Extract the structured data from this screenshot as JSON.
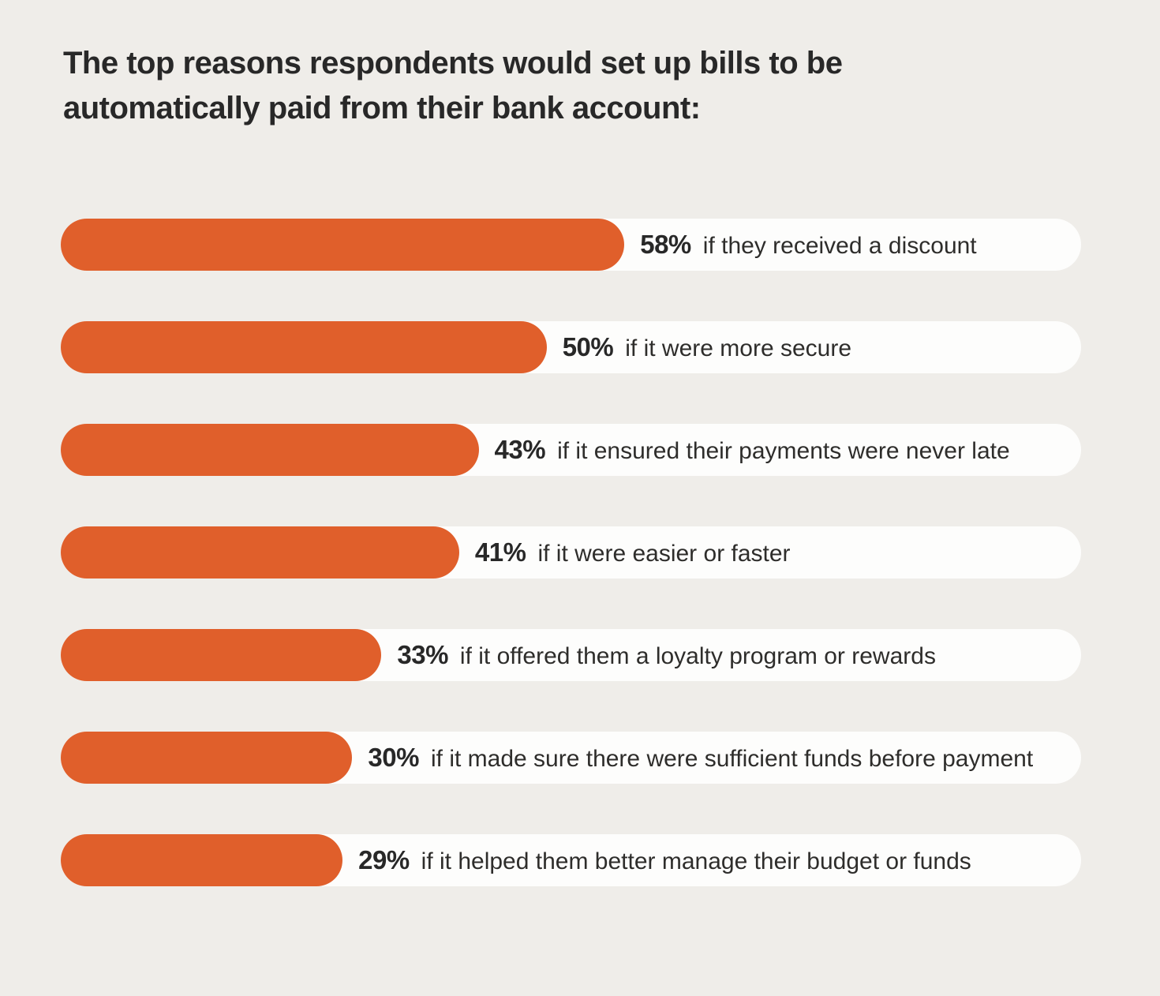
{
  "page": {
    "background_color": "#EFEDE9"
  },
  "chart_data": {
    "type": "bar",
    "orientation": "horizontal",
    "title": "The top reasons respondents would set up bills to be automatically paid from their bank account:",
    "categories": [
      "if they received a discount",
      "if it were more secure",
      "if it ensured their payments were never late",
      "if it were easier or faster",
      "if it offered them a loyalty program or rewards",
      "if it made sure there were sufficient funds before payment",
      "if it helped them better manage their budget or funds"
    ],
    "values": [
      58,
      50,
      43,
      41,
      33,
      30,
      29
    ],
    "value_unit": "%",
    "items": [
      {
        "value": 58,
        "value_label": "58%",
        "label": "if they received a discount"
      },
      {
        "value": 50,
        "value_label": "50%",
        "label": "if it were more secure"
      },
      {
        "value": 43,
        "value_label": "43%",
        "label": "if it ensured their payments were never late"
      },
      {
        "value": 41,
        "value_label": "41%",
        "label": "if it were easier or faster"
      },
      {
        "value": 33,
        "value_label": "33%",
        "label": "if it offered them a loyalty program or rewards"
      },
      {
        "value": 30,
        "value_label": "30%",
        "label": "if it made sure there were sufficient funds before payment"
      },
      {
        "value": 29,
        "value_label": "29%",
        "label": "if it helped them better manage their budget or funds"
      }
    ],
    "xlim": [
      0,
      105
    ],
    "grid": false,
    "legend": "none",
    "colors": {
      "bar_fill": "#E05F2B",
      "bar_track": "#FDFDFC",
      "text": "#282828",
      "background": "#EFEDE9"
    }
  }
}
